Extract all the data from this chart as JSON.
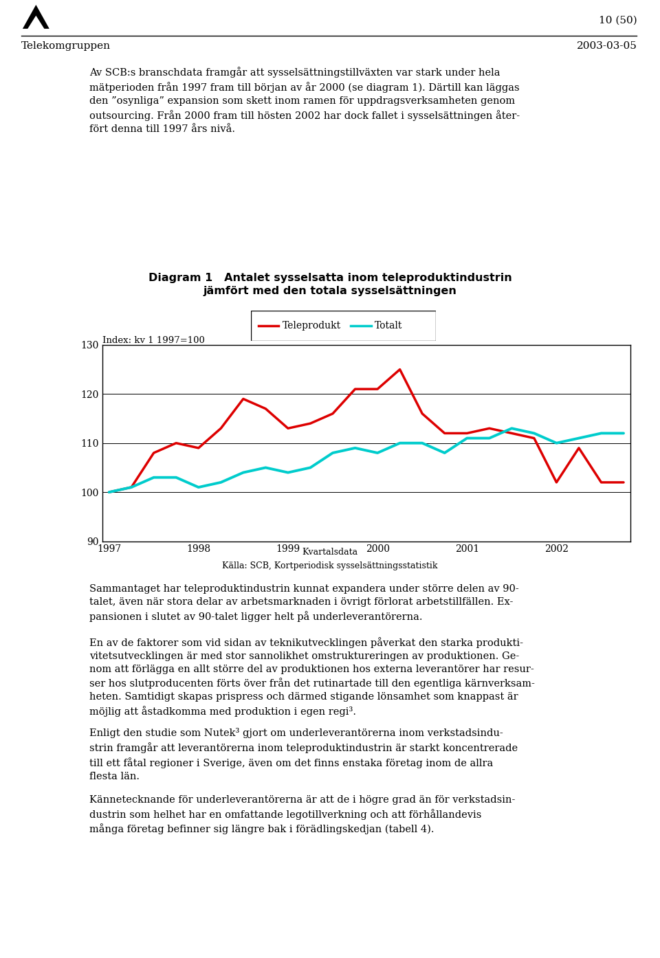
{
  "title_line1": "Diagram 1   Antalet sysselsatta inom teleproduktindustrin",
  "title_line2": "jämfört med den totala sysselsättningen",
  "ylabel": "Index: kv 1 1997=100",
  "xlabel_note1": "Kvartalsdata",
  "xlabel_note2": "Källa: SCB, Kortperiodisk sysselsättningsstatistik",
  "legend_labels": [
    "Teleprodukt",
    "Totalt"
  ],
  "colors": [
    "#dd0000",
    "#00cccc"
  ],
  "ylim": [
    90,
    130
  ],
  "yticks": [
    90,
    100,
    110,
    120,
    130
  ],
  "x_labels": [
    "1997",
    "1998",
    "1999",
    "2000",
    "2001",
    "2002"
  ],
  "teleprodukt": [
    100,
    101,
    108,
    110,
    109,
    113,
    119,
    117,
    113,
    114,
    116,
    121,
    121,
    125,
    116,
    112,
    112,
    113,
    112,
    111,
    102,
    109,
    102,
    102
  ],
  "totalt": [
    100,
    101,
    103,
    103,
    101,
    102,
    104,
    105,
    104,
    105,
    108,
    109,
    108,
    110,
    110,
    108,
    111,
    111,
    113,
    112,
    110,
    111,
    112,
    112
  ],
  "n_quarters": 24,
  "header_left": "Telekomgruppen",
  "header_right_top": "10 (50)",
  "header_right_bottom": "2003-03-05",
  "bg_color": "#ffffff",
  "text_color": "#000000",
  "body_text1": "Av SCB:s branschdata framgår att sysselsättningstillväxten var stark under hela\nmätperioden från 1997 fram till början av år 2000 (se diagram 1). Därtill kan läggas\nden ”osynliga” expansion som skett inom ramen för uppdragsverksamheten genom\noutsourcing. Från 2000 fram till hösten 2002 har dock fallet i sysselsättningen åter-\nfört denna till 1997 års nivå.",
  "body_text2": "Sammantaget har teleproduktindustrin kunnat expandera under större delen av 90-\ntalet, även när stora delar av arbetsmarknaden i övrigt förlorat arbetstillfällen. Ex-\npansionen i slutet av 90-talet ligger helt på underleverantörerna.",
  "body_text3": "En av de faktorer som vid sidan av teknikutvecklingen påverkat den starka produkti-\nvitetsutvecklingen är med stor sannolikhet omstruktureringen av produktionen. Ge-\nnom att förlägga en allt större del av produktionen hos externa leverantörer har resur-\nser hos slutproducenten förts över från det rutinartade till den egentliga kärnverksam-\nheten. Samtidigt skapas prispress och därmed stigande lönsamhet som knappast är\nmöjlig att åstadkomma med produktion i egen regi³.",
  "body_text4": "Enligt den studie som Nutek³ gjort om underleverantörerna inom verkstadsindu-\nstrin framgår att leverantörerna inom teleproduktindustrin är starkt koncentrerade\ntill ett fåtal regioner i Sverige, även om det finns enstaka företag inom de allra\nflesta län.",
  "body_text5": "Kännetecknande för underleverantörerna är att de i högre grad än för verkstadsin-\ndustrin som helhet har en omfattande legotillverkning och att förhållandevis\nmånga företag befinner sig längre bak i förädlingskedjan (tabell 4)."
}
